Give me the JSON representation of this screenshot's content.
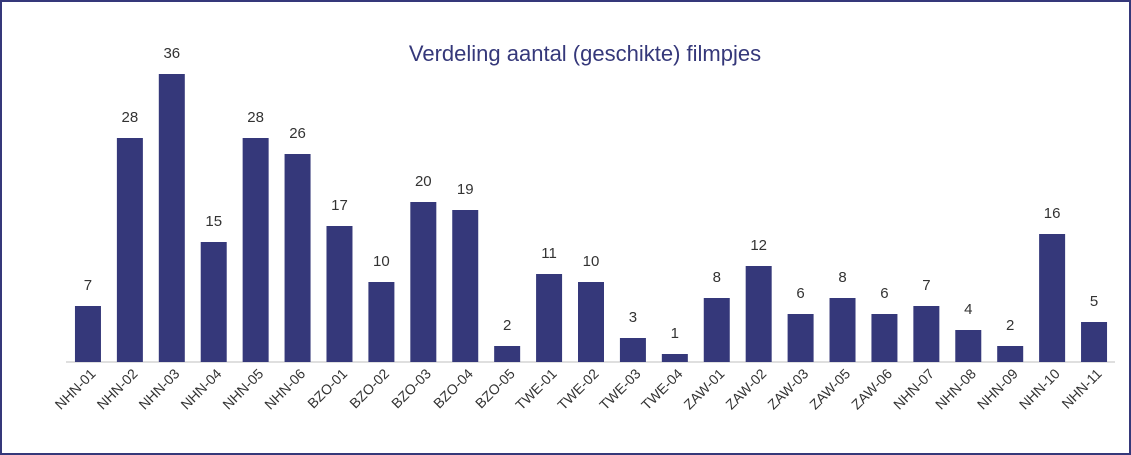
{
  "chart_data": {
    "type": "bar",
    "title": "Verdeling aantal (geschikte) filmpjes",
    "categories": [
      "NHN-01",
      "NHN-02",
      "NHN-03",
      "NHN-04",
      "NHN-05",
      "NHN-06",
      "BZO-01",
      "BZO-02",
      "BZO-03",
      "BZO-04",
      "BZO-05",
      "TWE-01",
      "TWE-02",
      "TWE-03",
      "TWE-04",
      "ZAW-01",
      "ZAW-02",
      "ZAW-03",
      "ZAW-05",
      "ZAW-06",
      "NHN-07",
      "NHN-08",
      "NHN-09",
      "NHN-10",
      "NHN-11"
    ],
    "values": [
      7,
      28,
      36,
      15,
      28,
      26,
      17,
      10,
      20,
      19,
      2,
      11,
      10,
      3,
      1,
      8,
      12,
      6,
      8,
      6,
      7,
      4,
      2,
      16,
      5
    ],
    "color": "#35387a"
  }
}
